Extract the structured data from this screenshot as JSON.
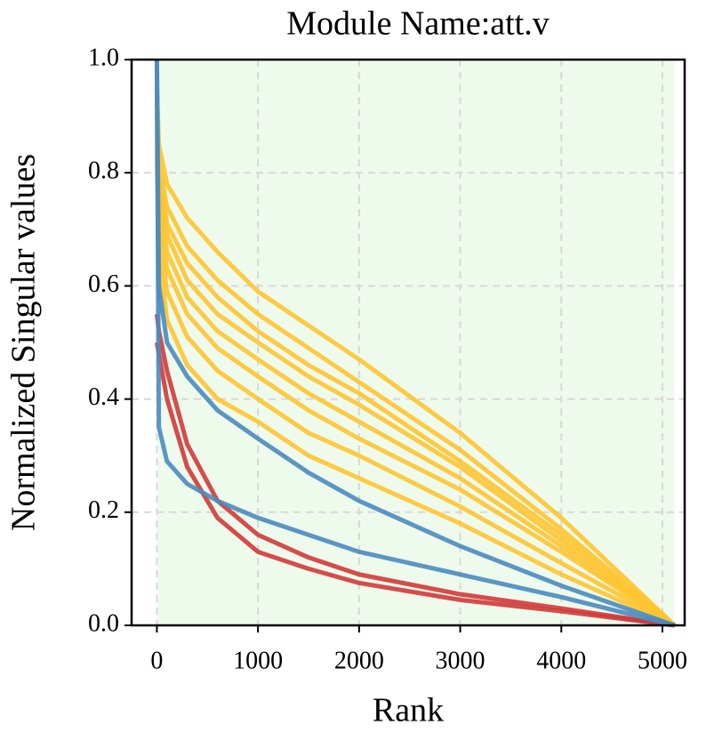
{
  "chart_data": {
    "type": "line",
    "title": "Module Name:att.v",
    "x_label": "Rank",
    "y_label": "Normalized Singular values",
    "x": [
      0,
      20,
      100,
      300,
      600,
      1000,
      1500,
      2000,
      3000,
      4000,
      5120
    ],
    "series": [
      {
        "color": "#fdc431",
        "values": [
          0.95,
          0.85,
          0.78,
          0.72,
          0.66,
          0.59,
          0.53,
          0.47,
          0.34,
          0.19,
          0
        ]
      },
      {
        "color": "#fdc431",
        "values": [
          0.93,
          0.82,
          0.74,
          0.67,
          0.61,
          0.55,
          0.49,
          0.43,
          0.31,
          0.17,
          0
        ]
      },
      {
        "color": "#fdc431",
        "values": [
          0.92,
          0.8,
          0.71,
          0.64,
          0.58,
          0.52,
          0.46,
          0.41,
          0.29,
          0.16,
          0
        ]
      },
      {
        "color": "#fdc431",
        "values": [
          0.9,
          0.78,
          0.69,
          0.61,
          0.55,
          0.5,
          0.44,
          0.39,
          0.28,
          0.15,
          0
        ]
      },
      {
        "color": "#fdc431",
        "values": [
          0.88,
          0.76,
          0.66,
          0.58,
          0.52,
          0.47,
          0.41,
          0.36,
          0.26,
          0.14,
          0
        ]
      },
      {
        "color": "#fdc431",
        "values": [
          0.86,
          0.73,
          0.63,
          0.55,
          0.49,
          0.44,
          0.38,
          0.33,
          0.24,
          0.13,
          0
        ]
      },
      {
        "color": "#fdc431",
        "values": [
          0.84,
          0.7,
          0.59,
          0.51,
          0.45,
          0.4,
          0.34,
          0.3,
          0.21,
          0.11,
          0
        ]
      },
      {
        "color": "#fdc431",
        "values": [
          0.82,
          0.66,
          0.54,
          0.46,
          0.4,
          0.36,
          0.3,
          0.26,
          0.18,
          0.09,
          0
        ]
      },
      {
        "color": "#d03a3a",
        "values": [
          0.55,
          0.52,
          0.45,
          0.32,
          0.22,
          0.16,
          0.12,
          0.09,
          0.055,
          0.03,
          0
        ]
      },
      {
        "color": "#d03a3a",
        "values": [
          0.5,
          0.48,
          0.4,
          0.28,
          0.19,
          0.13,
          0.1,
          0.075,
          0.045,
          0.025,
          0
        ]
      },
      {
        "color": "#4a8bbf",
        "values": [
          1.0,
          0.6,
          0.5,
          0.44,
          0.38,
          0.33,
          0.27,
          0.22,
          0.14,
          0.07,
          0
        ]
      },
      {
        "color": "#4a8bbf",
        "values": [
          1.0,
          0.35,
          0.29,
          0.25,
          0.22,
          0.19,
          0.16,
          0.13,
          0.09,
          0.05,
          0
        ]
      }
    ],
    "shaded_xrange": [
      0,
      5120
    ],
    "shade_color": "#eefaec",
    "xlim": [
      -250,
      5220
    ],
    "ylim": [
      0,
      1
    ],
    "xticks": [
      0,
      1000,
      2000,
      3000,
      4000,
      5000
    ],
    "yticks": [
      {
        "value": 0,
        "label": "0.0"
      },
      0.2,
      0.4,
      0.6,
      0.8,
      {
        "value": 1,
        "label": "1.0"
      }
    ],
    "grid": true
  }
}
